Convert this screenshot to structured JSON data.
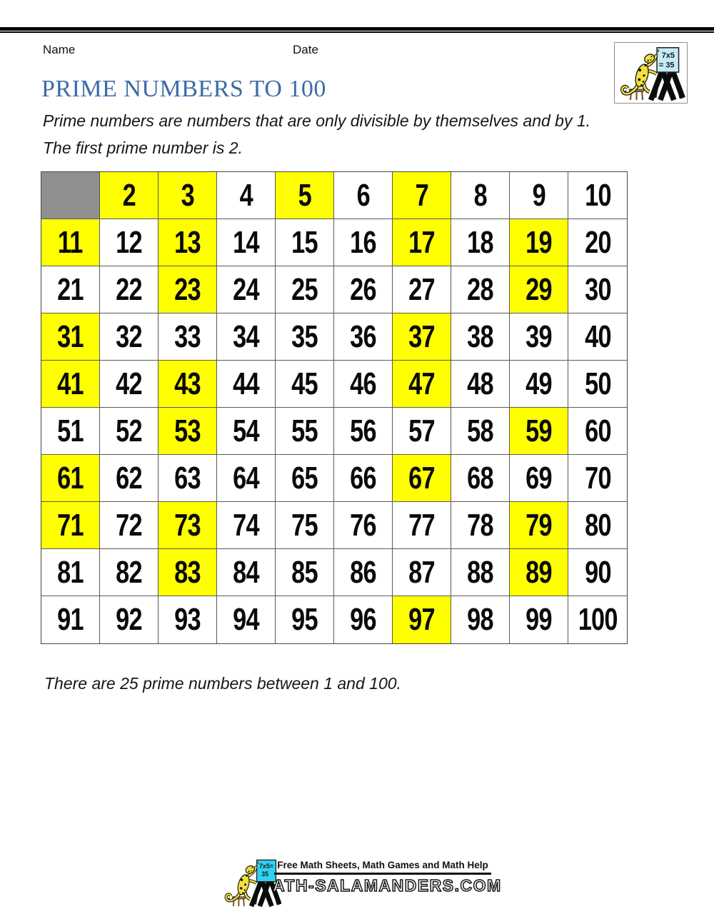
{
  "header": {
    "name_label": "Name",
    "date_label": "Date",
    "title": "PRIME NUMBERS TO 100",
    "description_line1": "Prime numbers are numbers that are only divisible by themselves and by 1.",
    "description_line2": "The first prime number is 2."
  },
  "logo": {
    "board_line1": "7x5",
    "board_line2": "= 35"
  },
  "grid": {
    "rows": 10,
    "cols": 10,
    "cells": [
      null,
      2,
      3,
      4,
      5,
      6,
      7,
      8,
      9,
      10,
      11,
      12,
      13,
      14,
      15,
      16,
      17,
      18,
      19,
      20,
      21,
      22,
      23,
      24,
      25,
      26,
      27,
      28,
      29,
      30,
      31,
      32,
      33,
      34,
      35,
      36,
      37,
      38,
      39,
      40,
      41,
      42,
      43,
      44,
      45,
      46,
      47,
      48,
      49,
      50,
      51,
      52,
      53,
      54,
      55,
      56,
      57,
      58,
      59,
      60,
      61,
      62,
      63,
      64,
      65,
      66,
      67,
      68,
      69,
      70,
      71,
      72,
      73,
      74,
      75,
      76,
      77,
      78,
      79,
      80,
      81,
      82,
      83,
      84,
      85,
      86,
      87,
      88,
      89,
      90,
      91,
      92,
      93,
      94,
      95,
      96,
      97,
      98,
      99,
      100
    ],
    "primes": [
      2,
      3,
      5,
      7,
      11,
      13,
      17,
      19,
      23,
      29,
      31,
      37,
      41,
      43,
      47,
      53,
      59,
      61,
      67,
      71,
      73,
      79,
      83,
      89,
      97
    ],
    "highlight_color": "#ffff00",
    "blank_cell_color": "#8f8f8f"
  },
  "summary": "There are 25 prime numbers between 1 and 100.",
  "footer": {
    "tagline": "Free Math Sheets, Math Games and Math Help",
    "board_line1": "7x5=",
    "board_line2": "35",
    "wordmark": "ATH-SALAMANDERS.COM"
  },
  "colors": {
    "title_blue": "#3d6ba7",
    "highlight_yellow": "#ffff00",
    "blank_gray": "#8f8f8f",
    "header_board_cyan": "#c4ecf5",
    "footer_board_cyan": "#2ed2f2",
    "salamander_yellow": "#f0e03c",
    "top_bar_black": "#000000"
  }
}
